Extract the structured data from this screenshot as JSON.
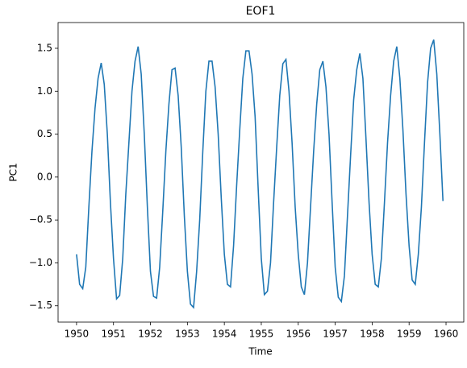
{
  "chart_data": {
    "type": "line",
    "title": "EOF1",
    "xlabel": "Time",
    "ylabel": "PC1",
    "x": [
      1950,
      1950.083,
      1950.167,
      1950.25,
      1950.333,
      1950.417,
      1950.5,
      1950.583,
      1950.667,
      1950.75,
      1950.833,
      1950.917,
      1951,
      1951.083,
      1951.167,
      1951.25,
      1951.333,
      1951.417,
      1951.5,
      1951.583,
      1951.667,
      1951.75,
      1951.833,
      1951.917,
      1952,
      1952.083,
      1952.167,
      1952.25,
      1952.333,
      1952.417,
      1952.5,
      1952.583,
      1952.667,
      1952.75,
      1952.833,
      1952.917,
      1953,
      1953.083,
      1953.167,
      1953.25,
      1953.333,
      1953.417,
      1953.5,
      1953.583,
      1953.667,
      1953.75,
      1953.833,
      1953.917,
      1954,
      1954.083,
      1954.167,
      1954.25,
      1954.333,
      1954.417,
      1954.5,
      1954.583,
      1954.667,
      1954.75,
      1954.833,
      1954.917,
      1955,
      1955.083,
      1955.167,
      1955.25,
      1955.333,
      1955.417,
      1955.5,
      1955.583,
      1955.667,
      1955.75,
      1955.833,
      1955.917,
      1956,
      1956.083,
      1956.167,
      1956.25,
      1956.333,
      1956.417,
      1956.5,
      1956.583,
      1956.667,
      1956.75,
      1956.833,
      1956.917,
      1957,
      1957.083,
      1957.167,
      1957.25,
      1957.333,
      1957.417,
      1957.5,
      1957.583,
      1957.667,
      1957.75,
      1957.833,
      1957.917,
      1958,
      1958.083,
      1958.167,
      1958.25,
      1958.333,
      1958.417,
      1958.5,
      1958.583,
      1958.667,
      1958.75,
      1958.833,
      1958.917,
      1959,
      1959.083,
      1959.167,
      1959.25,
      1959.333,
      1959.417,
      1959.5,
      1959.583,
      1959.667,
      1959.75,
      1959.833,
      1959.917
    ],
    "series": [
      {
        "color": "#1f77b4",
        "values": [
          -0.9,
          -1.25,
          -1.3,
          -1.05,
          -0.35,
          0.3,
          0.8,
          1.15,
          1.33,
          1.08,
          0.5,
          -0.3,
          -0.95,
          -1.42,
          -1.38,
          -0.95,
          -0.2,
          0.4,
          1.0,
          1.35,
          1.52,
          1.2,
          0.5,
          -0.35,
          -1.1,
          -1.39,
          -1.41,
          -1.05,
          -0.4,
          0.3,
          0.85,
          1.25,
          1.27,
          0.95,
          0.35,
          -0.45,
          -1.1,
          -1.48,
          -1.52,
          -1.1,
          -0.5,
          0.3,
          1.0,
          1.35,
          1.35,
          1.05,
          0.5,
          -0.25,
          -0.9,
          -1.25,
          -1.28,
          -0.8,
          -0.1,
          0.55,
          1.15,
          1.47,
          1.47,
          1.2,
          0.7,
          -0.15,
          -0.95,
          -1.37,
          -1.33,
          -1.0,
          -0.3,
          0.35,
          0.95,
          1.32,
          1.37,
          1.0,
          0.4,
          -0.35,
          -0.9,
          -1.28,
          -1.37,
          -1.0,
          -0.35,
          0.3,
          0.85,
          1.25,
          1.35,
          1.05,
          0.5,
          -0.3,
          -1.05,
          -1.4,
          -1.45,
          -1.15,
          -0.45,
          0.25,
          0.9,
          1.25,
          1.44,
          1.15,
          0.45,
          -0.3,
          -0.9,
          -1.25,
          -1.28,
          -0.95,
          -0.3,
          0.4,
          0.95,
          1.35,
          1.52,
          1.15,
          0.55,
          -0.2,
          -0.8,
          -1.2,
          -1.25,
          -0.9,
          -0.35,
          0.4,
          1.1,
          1.5,
          1.6,
          1.2,
          0.5,
          -0.28
        ]
      }
    ],
    "xlim": [
      1949.5,
      1960.48
    ],
    "ylim": [
      -1.69,
      1.8
    ],
    "xticks": [
      1950,
      1951,
      1952,
      1953,
      1954,
      1955,
      1956,
      1957,
      1958,
      1959,
      1960
    ],
    "yticks": [
      {
        "value": -1.5,
        "label": "−1.5"
      },
      {
        "value": -1.0,
        "label": "−1.0"
      },
      {
        "value": -0.5,
        "label": "−0.5"
      },
      {
        "value": 0,
        "label": "0.0"
      },
      0.5,
      {
        "value": 1.0,
        "label": "1.0"
      },
      1.5
    ]
  }
}
